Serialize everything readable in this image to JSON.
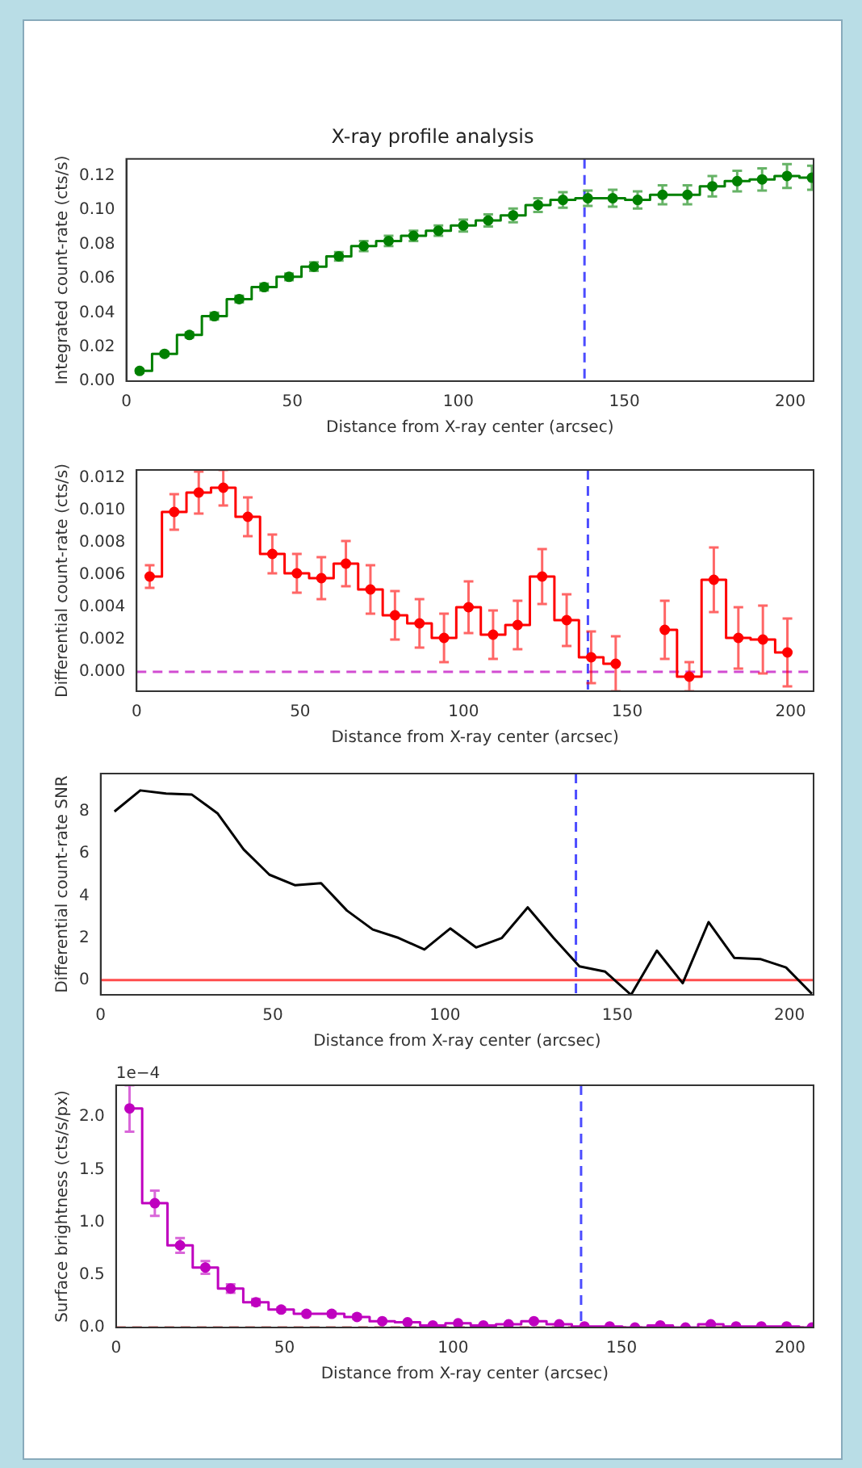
{
  "chart_data": [
    {
      "type": "step",
      "title": "X-ray profile analysis",
      "xlabel": "Distance from X-ray center (arcsec)",
      "ylabel": "Integrated count-rate (cts/s)",
      "color": "#008000",
      "marker": "circle",
      "x": [
        4,
        11.5,
        19,
        26.5,
        34,
        41.5,
        49,
        56.5,
        64,
        71.5,
        79,
        86.5,
        94,
        101.5,
        109,
        116.5,
        124,
        131.5,
        139,
        146.5,
        154,
        161.5,
        169,
        176.5,
        184,
        191.5,
        199,
        206.5
      ],
      "values": [
        0.006,
        0.016,
        0.027,
        0.038,
        0.048,
        0.055,
        0.061,
        0.067,
        0.073,
        0.079,
        0.082,
        0.085,
        0.088,
        0.091,
        0.094,
        0.097,
        0.103,
        0.106,
        0.107,
        0.107,
        0.106,
        0.109,
        0.109,
        0.114,
        0.117,
        0.118,
        0.12,
        0.119
      ],
      "errors": [
        0.001,
        0.001,
        0.0015,
        0.002,
        0.002,
        0.002,
        0.002,
        0.0025,
        0.0025,
        0.003,
        0.003,
        0.003,
        0.003,
        0.0035,
        0.0035,
        0.004,
        0.004,
        0.0045,
        0.0045,
        0.005,
        0.005,
        0.0055,
        0.0055,
        0.006,
        0.006,
        0.0065,
        0.007,
        0.007
      ],
      "xlim": [
        0,
        207
      ],
      "xticks": [
        0,
        50,
        100,
        150,
        200
      ],
      "ylim": [
        0,
        0.13
      ],
      "yticks": [
        {
          "value": 0,
          "label": "0.00"
        },
        {
          "value": 0.02,
          "label": "0.02"
        },
        {
          "value": 0.04,
          "label": "0.04"
        },
        {
          "value": 0.06,
          "label": "0.06"
        },
        {
          "value": 0.08,
          "label": "0.08"
        },
        {
          "value": 0.1,
          "label": "0.10"
        },
        {
          "value": 0.12,
          "label": "0.12"
        }
      ],
      "ref_lines": [
        {
          "axis": "x",
          "value": 138,
          "color": "#0000ff",
          "line_style": "dashed"
        }
      ]
    },
    {
      "type": "step",
      "xlabel": "Distance from X-ray center (arcsec)",
      "ylabel": "Differential count-rate (cts/s)",
      "color": "#ff0000",
      "marker": "circle",
      "x": [
        4,
        11.5,
        19,
        26.5,
        34,
        41.5,
        49,
        56.5,
        64,
        71.5,
        79,
        86.5,
        94,
        101.5,
        109,
        116.5,
        124,
        131.5,
        139,
        146.5,
        154,
        161.5,
        169,
        176.5,
        184,
        191.5,
        199
      ],
      "values": [
        0.0059,
        0.0099,
        0.0111,
        0.0114,
        0.0096,
        0.0073,
        0.0061,
        0.0058,
        0.0067,
        0.0051,
        0.0035,
        0.003,
        0.0021,
        0.004,
        0.0023,
        0.0029,
        0.0059,
        0.0032,
        0.0009,
        0.0005,
        null,
        0.0026,
        -0.0003,
        0.0057,
        0.0021,
        0.002,
        0.0012
      ],
      "errors": [
        0.0007,
        0.0011,
        0.0013,
        0.0011,
        0.0012,
        0.0012,
        0.0012,
        0.0013,
        0.0014,
        0.0015,
        0.0015,
        0.0015,
        0.0015,
        0.0016,
        0.0015,
        0.0015,
        0.0017,
        0.0016,
        0.0016,
        0.0017,
        null,
        0.0018,
        0.0009,
        0.002,
        0.0019,
        0.0021,
        0.0021
      ],
      "xlim": [
        0,
        207
      ],
      "xticks": [
        0,
        50,
        100,
        150,
        200
      ],
      "ylim": [
        -0.0012,
        0.0125
      ],
      "yticks": [
        {
          "value": 0,
          "label": "0.000"
        },
        {
          "value": 0.002,
          "label": "0.002"
        },
        {
          "value": 0.004,
          "label": "0.004"
        },
        {
          "value": 0.006,
          "label": "0.006"
        },
        {
          "value": 0.008,
          "label": "0.008"
        },
        {
          "value": 0.01,
          "label": "0.010"
        },
        {
          "value": 0.012,
          "label": "0.012"
        }
      ],
      "ref_lines": [
        {
          "axis": "x",
          "value": 138,
          "color": "#0000ff",
          "line_style": "dashed"
        },
        {
          "axis": "y",
          "value": 0,
          "color": "#bf00bf",
          "line_style": "dashed"
        }
      ]
    },
    {
      "type": "line",
      "xlabel": "Distance from X-ray center (arcsec)",
      "ylabel": "Differential count-rate SNR",
      "color": "#000000",
      "x": [
        4,
        11.5,
        19,
        26.5,
        34,
        41.5,
        49,
        56.5,
        64,
        71.5,
        79,
        86.5,
        94,
        101.5,
        109,
        116.5,
        124,
        131.5,
        139,
        146.5,
        154,
        161.5,
        169,
        176.5,
        184,
        191.5,
        199,
        206.5
      ],
      "values": [
        8.0,
        9.0,
        8.85,
        8.8,
        7.9,
        6.2,
        5.0,
        4.5,
        4.6,
        3.3,
        2.4,
        2.0,
        1.45,
        2.45,
        1.55,
        2.0,
        3.45,
        2.0,
        0.65,
        0.4,
        -0.7,
        1.4,
        -0.15,
        2.75,
        1.05,
        1.0,
        0.6,
        -0.65
      ],
      "xlim": [
        0,
        207
      ],
      "xticks": [
        0,
        50,
        100,
        150,
        200
      ],
      "ylim": [
        -0.7,
        9.8
      ],
      "yticks": [
        0,
        2,
        4,
        6,
        8
      ],
      "ref_lines": [
        {
          "axis": "x",
          "value": 138,
          "color": "#0000ff",
          "line_style": "dashed"
        },
        {
          "axis": "y",
          "value": 0,
          "color": "#ff0000",
          "line_style": "solid"
        }
      ]
    },
    {
      "type": "step",
      "xlabel": "Distance from X-ray center (arcsec)",
      "ylabel": "Surface brightness (cts/s/px)",
      "color": "#bf00bf",
      "marker": "circle",
      "annotations": [
        "1e−4"
      ],
      "x": [
        4,
        11.5,
        19,
        26.5,
        34,
        41.5,
        49,
        56.5,
        64,
        71.5,
        79,
        86.5,
        94,
        101.5,
        109,
        116.5,
        124,
        131.5,
        139,
        146.5,
        154,
        161.5,
        169,
        176.5,
        184,
        191.5,
        199,
        206.5
      ],
      "values": [
        2.08,
        1.18,
        0.78,
        0.57,
        0.37,
        0.24,
        0.17,
        0.13,
        0.13,
        0.1,
        0.06,
        0.05,
        0.02,
        0.04,
        0.02,
        0.03,
        0.06,
        0.03,
        0.01,
        0.01,
        0,
        0.02,
        0,
        0.03,
        0.01,
        0.01,
        0.01,
        0
      ],
      "errors": [
        0.22,
        0.12,
        0.07,
        0.06,
        0.04,
        0.03,
        0.02,
        0.02,
        0.02,
        0.02,
        null,
        null,
        null,
        null,
        null,
        null,
        null,
        null,
        null,
        null,
        null,
        null,
        null,
        null,
        null,
        null,
        null,
        null
      ],
      "xlim": [
        0,
        207
      ],
      "xticks": [
        0,
        50,
        100,
        150,
        200
      ],
      "ylim": [
        0,
        2.3
      ],
      "yticks": [
        {
          "value": 0,
          "label": "0.0"
        },
        {
          "value": 0.5,
          "label": "0.5"
        },
        {
          "value": 1,
          "label": "1.0"
        },
        {
          "value": 1.5,
          "label": "1.5"
        },
        {
          "value": 2,
          "label": "2.0"
        }
      ],
      "ref_lines": [
        {
          "axis": "x",
          "value": 138,
          "color": "#0000ff",
          "line_style": "dashed"
        },
        {
          "axis": "y",
          "value": 0,
          "color": "#aa0000",
          "line_style": "dashed"
        }
      ]
    }
  ]
}
